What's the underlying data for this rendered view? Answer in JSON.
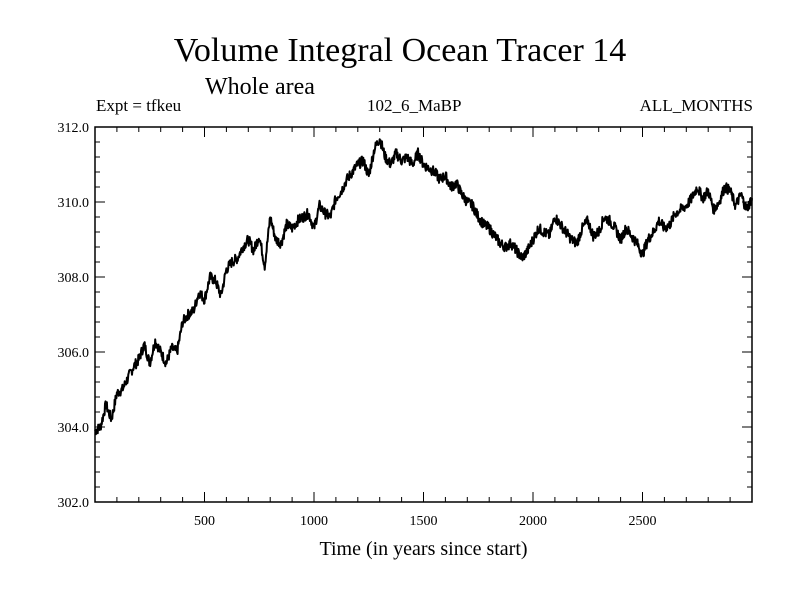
{
  "chart_data": {
    "type": "line",
    "title": "Volume Integral Ocean Tracer 14",
    "subtitle": "Whole area",
    "annotations": {
      "left": "Expt = tfkeu",
      "center": "102_6_MaBP",
      "right": "ALL_MONTHS"
    },
    "xlabel": "Time (in years since start)",
    "ylabel": "",
    "xlim": [
      0,
      3000
    ],
    "ylim": [
      302.0,
      312.0
    ],
    "x_ticks": [
      500,
      1000,
      1500,
      2000,
      2500
    ],
    "x_tick_labels": [
      "500",
      "1000",
      "1500",
      "2000",
      "2500"
    ],
    "y_ticks": [
      302,
      304,
      306,
      308,
      310,
      312
    ],
    "y_tick_labels": [
      "302.0",
      "304.0",
      "306.0",
      "308.0",
      "310.0",
      "312.0"
    ],
    "grid": false,
    "line_color": "#000000",
    "series": [
      {
        "x": [
          0,
          25,
          50,
          75,
          100,
          125,
          150,
          175,
          200,
          225,
          250,
          275,
          300,
          325,
          350,
          375,
          400,
          425,
          450,
          475,
          500,
          525,
          550,
          575,
          600,
          625,
          650,
          675,
          700,
          725,
          750,
          775,
          800,
          825,
          850,
          875,
          900,
          925,
          950,
          975,
          1000,
          1025,
          1050,
          1075,
          1100,
          1125,
          1150,
          1175,
          1200,
          1225,
          1250,
          1275,
          1300,
          1325,
          1350,
          1375,
          1400,
          1425,
          1450,
          1475,
          1500,
          1525,
          1550,
          1575,
          1600,
          1625,
          1650,
          1675,
          1700,
          1725,
          1750,
          1775,
          1800,
          1825,
          1850,
          1875,
          1900,
          1925,
          1950,
          1975,
          2000,
          2025,
          2050,
          2075,
          2100,
          2125,
          2150,
          2175,
          2200,
          2225,
          2250,
          2275,
          2300,
          2325,
          2350,
          2375,
          2400,
          2425,
          2450,
          2475,
          2500,
          2525,
          2550,
          2575,
          2600,
          2625,
          2650,
          2675,
          2700,
          2725,
          2750,
          2775,
          2800,
          2825,
          2850,
          2875,
          2900,
          2925,
          2950,
          2975,
          3000
        ],
        "y": [
          303.9,
          304.0,
          304.6,
          304.2,
          304.9,
          305.0,
          305.3,
          305.6,
          305.8,
          306.2,
          305.7,
          306.3,
          306.0,
          305.7,
          306.1,
          306.0,
          306.8,
          307.0,
          307.1,
          307.6,
          307.4,
          308.0,
          307.9,
          307.5,
          308.2,
          308.4,
          308.5,
          308.8,
          309.0,
          308.7,
          309.1,
          308.3,
          309.6,
          309.0,
          308.9,
          309.4,
          309.3,
          309.5,
          309.6,
          309.7,
          309.3,
          309.9,
          309.7,
          309.6,
          310.1,
          310.3,
          310.6,
          310.8,
          311.0,
          311.1,
          310.7,
          311.4,
          311.7,
          311.2,
          311.0,
          311.3,
          311.1,
          311.2,
          311.0,
          311.3,
          311.0,
          310.9,
          310.8,
          310.6,
          310.7,
          310.4,
          310.5,
          310.2,
          310.0,
          309.9,
          309.6,
          309.4,
          309.3,
          309.1,
          308.9,
          308.8,
          308.9,
          308.7,
          308.5,
          308.7,
          309.0,
          309.3,
          309.2,
          309.1,
          309.6,
          309.4,
          309.2,
          309.0,
          308.9,
          309.3,
          309.5,
          309.1,
          309.2,
          309.6,
          309.5,
          309.3,
          309.0,
          309.3,
          309.1,
          308.9,
          308.6,
          309.0,
          309.2,
          309.5,
          309.3,
          309.4,
          309.7,
          309.8,
          309.9,
          310.1,
          310.4,
          310.1,
          310.3,
          309.8,
          310.0,
          310.4,
          310.3,
          309.9,
          310.2,
          309.8,
          310.1
        ]
      }
    ]
  }
}
